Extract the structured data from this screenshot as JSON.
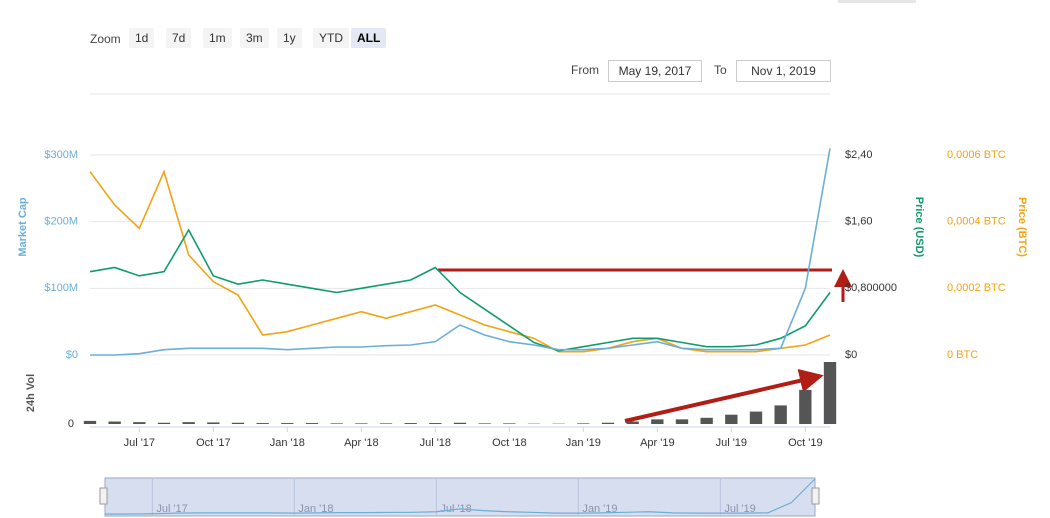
{
  "zoom": {
    "label": "Zoom",
    "buttons": [
      "1d",
      "7d",
      "1m",
      "3m",
      "1y",
      "YTD",
      "ALL"
    ],
    "active": "ALL"
  },
  "range": {
    "from_label": "From",
    "from": "May 19, 2017",
    "to_label": "To",
    "to": "Nov 1, 2019"
  },
  "chart_data": {
    "type": "line",
    "categories": [
      null,
      null,
      "Jul '17",
      null,
      null,
      "Oct '17",
      null,
      null,
      "Jan '18",
      null,
      null,
      "Apr '18",
      null,
      null,
      "Jul '18",
      null,
      null,
      "Oct '18",
      null,
      null,
      "Jan '19",
      null,
      null,
      "Apr '19",
      null,
      null,
      "Jul '19",
      null,
      null,
      "Oct '19",
      null
    ],
    "ylabel": "Market Cap",
    "y2label": "Price (USD)",
    "y3label": "Price (BTC)",
    "ylim": [
      0,
      300000000
    ],
    "yticks": [
      {
        "value": 0,
        "label": "$0"
      },
      {
        "value": 100000000,
        "label": "$100M"
      },
      {
        "value": 200000000,
        "label": "$200M"
      },
      {
        "value": 300000000,
        "label": "$300M"
      }
    ],
    "y2lim": [
      0,
      2.4
    ],
    "y2ticks": [
      {
        "value": 0,
        "label": "$0"
      },
      {
        "value": 0.8,
        "label": "$0,800000"
      },
      {
        "value": 1.6,
        "label": "$1,60"
      },
      {
        "value": 2.4,
        "label": "$2,40"
      }
    ],
    "y3lim": [
      0,
      0.0006
    ],
    "y3ticks": [
      {
        "value": 0,
        "label": "0 BTC"
      },
      {
        "value": 0.0002,
        "label": "0,0002 BTC"
      },
      {
        "value": 0.0004,
        "label": "0,0004 BTC"
      },
      {
        "value": 0.0006,
        "label": "0,0006 BTC"
      }
    ],
    "grid": true,
    "series": [
      {
        "name": "Market Cap",
        "color": "#6aafd8",
        "axis": "y",
        "values": [
          0,
          0,
          2000000,
          8000000,
          10000000,
          10000000,
          10000000,
          10000000,
          8000000,
          10000000,
          12000000,
          12000000,
          14000000,
          15000000,
          20000000,
          45000000,
          30000000,
          20000000,
          15000000,
          8000000,
          8000000,
          10000000,
          15000000,
          20000000,
          10000000,
          8000000,
          8000000,
          8000000,
          10000000,
          100000000,
          310000000
        ]
      },
      {
        "name": "Price (USD)",
        "color": "#109b6e",
        "axis": "y2",
        "values": [
          1.0,
          1.05,
          0.95,
          1.0,
          1.5,
          0.95,
          0.85,
          0.9,
          0.85,
          0.8,
          0.75,
          0.8,
          0.85,
          0.9,
          1.05,
          0.75,
          0.55,
          0.35,
          0.15,
          0.05,
          0.1,
          0.15,
          0.2,
          0.2,
          0.15,
          0.1,
          0.1,
          0.12,
          0.2,
          0.35,
          0.75
        ]
      },
      {
        "name": "Price (BTC)",
        "color": "#f2a313",
        "axis": "y3",
        "values": [
          0.00055,
          0.00045,
          0.00038,
          0.00055,
          0.0003,
          0.00022,
          0.00018,
          6e-05,
          7e-05,
          9e-05,
          0.00011,
          0.00013,
          0.00011,
          0.00013,
          0.00015,
          0.00012,
          9e-05,
          7e-05,
          5e-05,
          1e-05,
          1e-05,
          2e-05,
          4e-05,
          5e-05,
          2e-05,
          1e-05,
          1e-05,
          1e-05,
          2e-05,
          3e-05,
          6e-05
        ]
      }
    ],
    "volume": {
      "name": "24h Vol",
      "color": "#555555",
      "ylim": [
        0,
        2000000
      ],
      "yticks": [
        0
      ],
      "values": [
        100000,
        80000,
        60000,
        40000,
        60000,
        50000,
        40000,
        30000,
        30000,
        30000,
        20000,
        20000,
        20000,
        30000,
        30000,
        40000,
        20000,
        20000,
        10000,
        10000,
        20000,
        40000,
        80000,
        150000,
        150000,
        200000,
        300000,
        400000,
        600000,
        1100000,
        2000000
      ]
    }
  }
}
